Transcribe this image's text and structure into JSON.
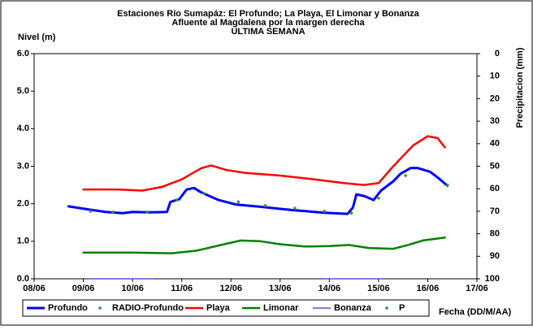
{
  "chart_data": {
    "type": "line",
    "title": [
      "Estaciones Río Sumapáz: El Profundo; La Playa, El Limonar y Bonanza",
      "Afluente al Magdalena por la margen derecha",
      "ULTIMA SEMANA"
    ],
    "ylabel": "Nivel (m)",
    "y2label": "Precipitacion (mm)",
    "xlabel": "Fecha (DD/M/AA)",
    "xlim": [
      8,
      17
    ],
    "xticks": [
      {
        "value": 8,
        "label": "08/06"
      },
      {
        "value": 9,
        "label": "09/06"
      },
      {
        "value": 10,
        "label": "10/06"
      },
      {
        "value": 11,
        "label": "11/06"
      },
      {
        "value": 12,
        "label": "12/06"
      },
      {
        "value": 13,
        "label": "13/06"
      },
      {
        "value": 14,
        "label": "14/06"
      },
      {
        "value": 15,
        "label": "15/06"
      },
      {
        "value": 16,
        "label": "16/06"
      },
      {
        "value": 17,
        "label": "17/06"
      }
    ],
    "ylim": [
      0,
      6
    ],
    "yticks": [
      {
        "value": 0,
        "label": "0.0"
      },
      {
        "value": 1,
        "label": "1.0"
      },
      {
        "value": 2,
        "label": "2.0"
      },
      {
        "value": 3,
        "label": "3.0"
      },
      {
        "value": 4,
        "label": "4.0"
      },
      {
        "value": 5,
        "label": "5.0"
      },
      {
        "value": 6,
        "label": "6.0"
      }
    ],
    "y2lim": [
      100,
      0
    ],
    "y2ticks": [
      0,
      10,
      20,
      30,
      40,
      50,
      60,
      70,
      80,
      90,
      100
    ],
    "series": [
      {
        "name": "Profundo",
        "color": "#0000ff",
        "kind": "line",
        "width": 3,
        "x": [
          8.7,
          9.1,
          9.45,
          9.8,
          10.0,
          10.35,
          10.7,
          10.77,
          10.95,
          11.1,
          11.25,
          11.4,
          11.75,
          12.1,
          12.6,
          13.25,
          13.9,
          14.37,
          14.48,
          14.55,
          14.72,
          14.9,
          15.05,
          15.3,
          15.45,
          15.65,
          15.8,
          16.05,
          16.2,
          16.4
        ],
        "values": [
          1.93,
          1.85,
          1.78,
          1.75,
          1.78,
          1.77,
          1.78,
          2.05,
          2.12,
          2.38,
          2.42,
          2.3,
          2.1,
          1.98,
          1.92,
          1.83,
          1.76,
          1.73,
          1.9,
          2.25,
          2.2,
          2.1,
          2.35,
          2.6,
          2.8,
          2.95,
          2.95,
          2.85,
          2.7,
          2.48
        ]
      },
      {
        "name": "RADIO-Profundo",
        "color": "#339933",
        "kind": "points",
        "x": [
          9.15,
          9.6,
          10.3,
          10.9,
          11.45,
          12.15,
          12.7,
          13.3,
          13.9,
          14.45,
          15.0,
          15.55,
          16.4
        ],
        "values": [
          1.8,
          1.78,
          1.78,
          2.1,
          2.28,
          2.05,
          1.95,
          1.88,
          1.8,
          1.75,
          2.15,
          2.75,
          2.5
        ]
      },
      {
        "name": "Playa",
        "color": "#ff0000",
        "kind": "line",
        "width": 2.5,
        "x": [
          9.0,
          9.7,
          10.2,
          10.6,
          11.0,
          11.4,
          11.6,
          11.9,
          12.3,
          13.0,
          13.7,
          14.3,
          14.7,
          15.0,
          15.3,
          15.7,
          16.0,
          16.2,
          16.35
        ],
        "values": [
          2.38,
          2.38,
          2.35,
          2.45,
          2.65,
          2.95,
          3.02,
          2.9,
          2.82,
          2.75,
          2.65,
          2.55,
          2.5,
          2.55,
          3.0,
          3.55,
          3.8,
          3.75,
          3.5
        ]
      },
      {
        "name": "Limonar",
        "color": "#008000",
        "kind": "line",
        "width": 2.5,
        "x": [
          9.0,
          10.0,
          10.8,
          11.3,
          11.8,
          12.2,
          12.6,
          13.0,
          13.5,
          14.0,
          14.4,
          14.8,
          15.3,
          15.6,
          15.9,
          16.35
        ],
        "values": [
          0.7,
          0.7,
          0.68,
          0.75,
          0.9,
          1.02,
          1.0,
          0.92,
          0.86,
          0.87,
          0.9,
          0.82,
          0.8,
          0.9,
          1.02,
          1.1
        ]
      },
      {
        "name": "Bonanza",
        "color": "#3333cc",
        "kind": "line",
        "width": 1.2,
        "x": [
          9.1,
          10.4,
          12.0,
          13.9,
          15.05
        ],
        "values": [
          0,
          0,
          null,
          0,
          0
        ]
      },
      {
        "name": "P",
        "color": "#339933",
        "kind": "points",
        "axis": "y2",
        "x": [],
        "values": []
      }
    ]
  }
}
